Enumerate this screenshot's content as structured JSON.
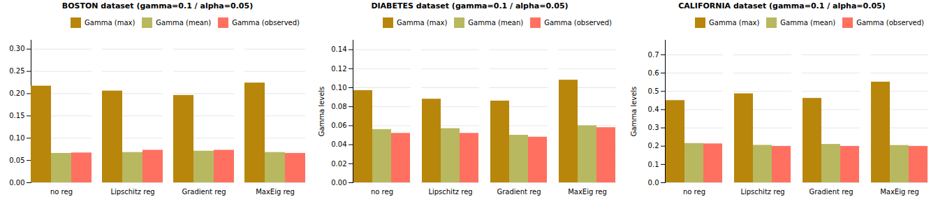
{
  "chart_data": [
    {
      "type": "bar",
      "title": "BOSTON dataset (gamma=0.1 / alpha=0.05)",
      "categories": [
        "no reg",
        "Lipschitz reg",
        "Gradient reg",
        "MaxEig reg"
      ],
      "series": [
        {
          "name": "Gamma (max)",
          "color": "#b8860b",
          "values": [
            0.217,
            0.206,
            0.196,
            0.224
          ]
        },
        {
          "name": "Gamma (mean)",
          "color": "#b8b860",
          "values": [
            0.066,
            0.068,
            0.071,
            0.068
          ]
        },
        {
          "name": "Gamma (observed)",
          "color": "#ff7060",
          "values": [
            0.067,
            0.073,
            0.073,
            0.066
          ]
        }
      ],
      "ylim": [
        0,
        0.32
      ],
      "yticks": [
        {
          "value": 0,
          "label": "0.00"
        },
        0.05,
        {
          "value": 0.1,
          "label": "0.10"
        },
        0.15,
        {
          "value": 0.2,
          "label": "0.20"
        },
        0.25,
        {
          "value": 0.3,
          "label": "0.30"
        }
      ],
      "grid": true,
      "legend": "upper right"
    },
    {
      "type": "bar",
      "title": "DIABETES dataset (gamma=0.1 / alpha=0.05)",
      "ylabel": "Gamma levels",
      "categories": [
        "no reg",
        "Lipschitz reg",
        "Gradient reg",
        "MaxEig reg"
      ],
      "series": [
        {
          "name": "Gamma (max)",
          "color": "#b8860b",
          "values": [
            0.097,
            0.088,
            0.086,
            0.108
          ]
        },
        {
          "name": "Gamma (mean)",
          "color": "#b8b860",
          "values": [
            0.056,
            0.057,
            0.05,
            0.06
          ]
        },
        {
          "name": "Gamma (observed)",
          "color": "#ff7060",
          "values": [
            0.052,
            0.052,
            0.048,
            0.058
          ]
        }
      ],
      "ylim": [
        0,
        0.15
      ],
      "yticks": [
        {
          "value": 0,
          "label": "0.00"
        },
        0.02,
        0.04,
        0.06,
        0.08,
        {
          "value": 0.1,
          "label": "0.10"
        },
        0.12,
        0.14
      ],
      "grid": true,
      "legend": "upper right"
    },
    {
      "type": "bar",
      "title": "CALIFORNIA dataset (gamma=0.1 / alpha=0.05)",
      "ylabel": "Gamma levels",
      "categories": [
        "no reg",
        "Lipschitz reg",
        "Gradient reg",
        "MaxEig reg"
      ],
      "series": [
        {
          "name": "Gamma (max)",
          "color": "#b8860b",
          "values": [
            0.45,
            0.487,
            0.462,
            0.551
          ]
        },
        {
          "name": "Gamma (mean)",
          "color": "#b8b860",
          "values": [
            0.215,
            0.205,
            0.21,
            0.204
          ]
        },
        {
          "name": "Gamma (observed)",
          "color": "#ff7060",
          "values": [
            0.213,
            0.199,
            0.199,
            0.199
          ]
        }
      ],
      "ylim": [
        0,
        0.78
      ],
      "yticks": [
        {
          "value": 0,
          "label": "0.0"
        },
        0.1,
        0.2,
        0.3,
        0.4,
        0.5,
        0.6,
        0.7
      ],
      "grid": true,
      "legend": "upper right"
    }
  ]
}
